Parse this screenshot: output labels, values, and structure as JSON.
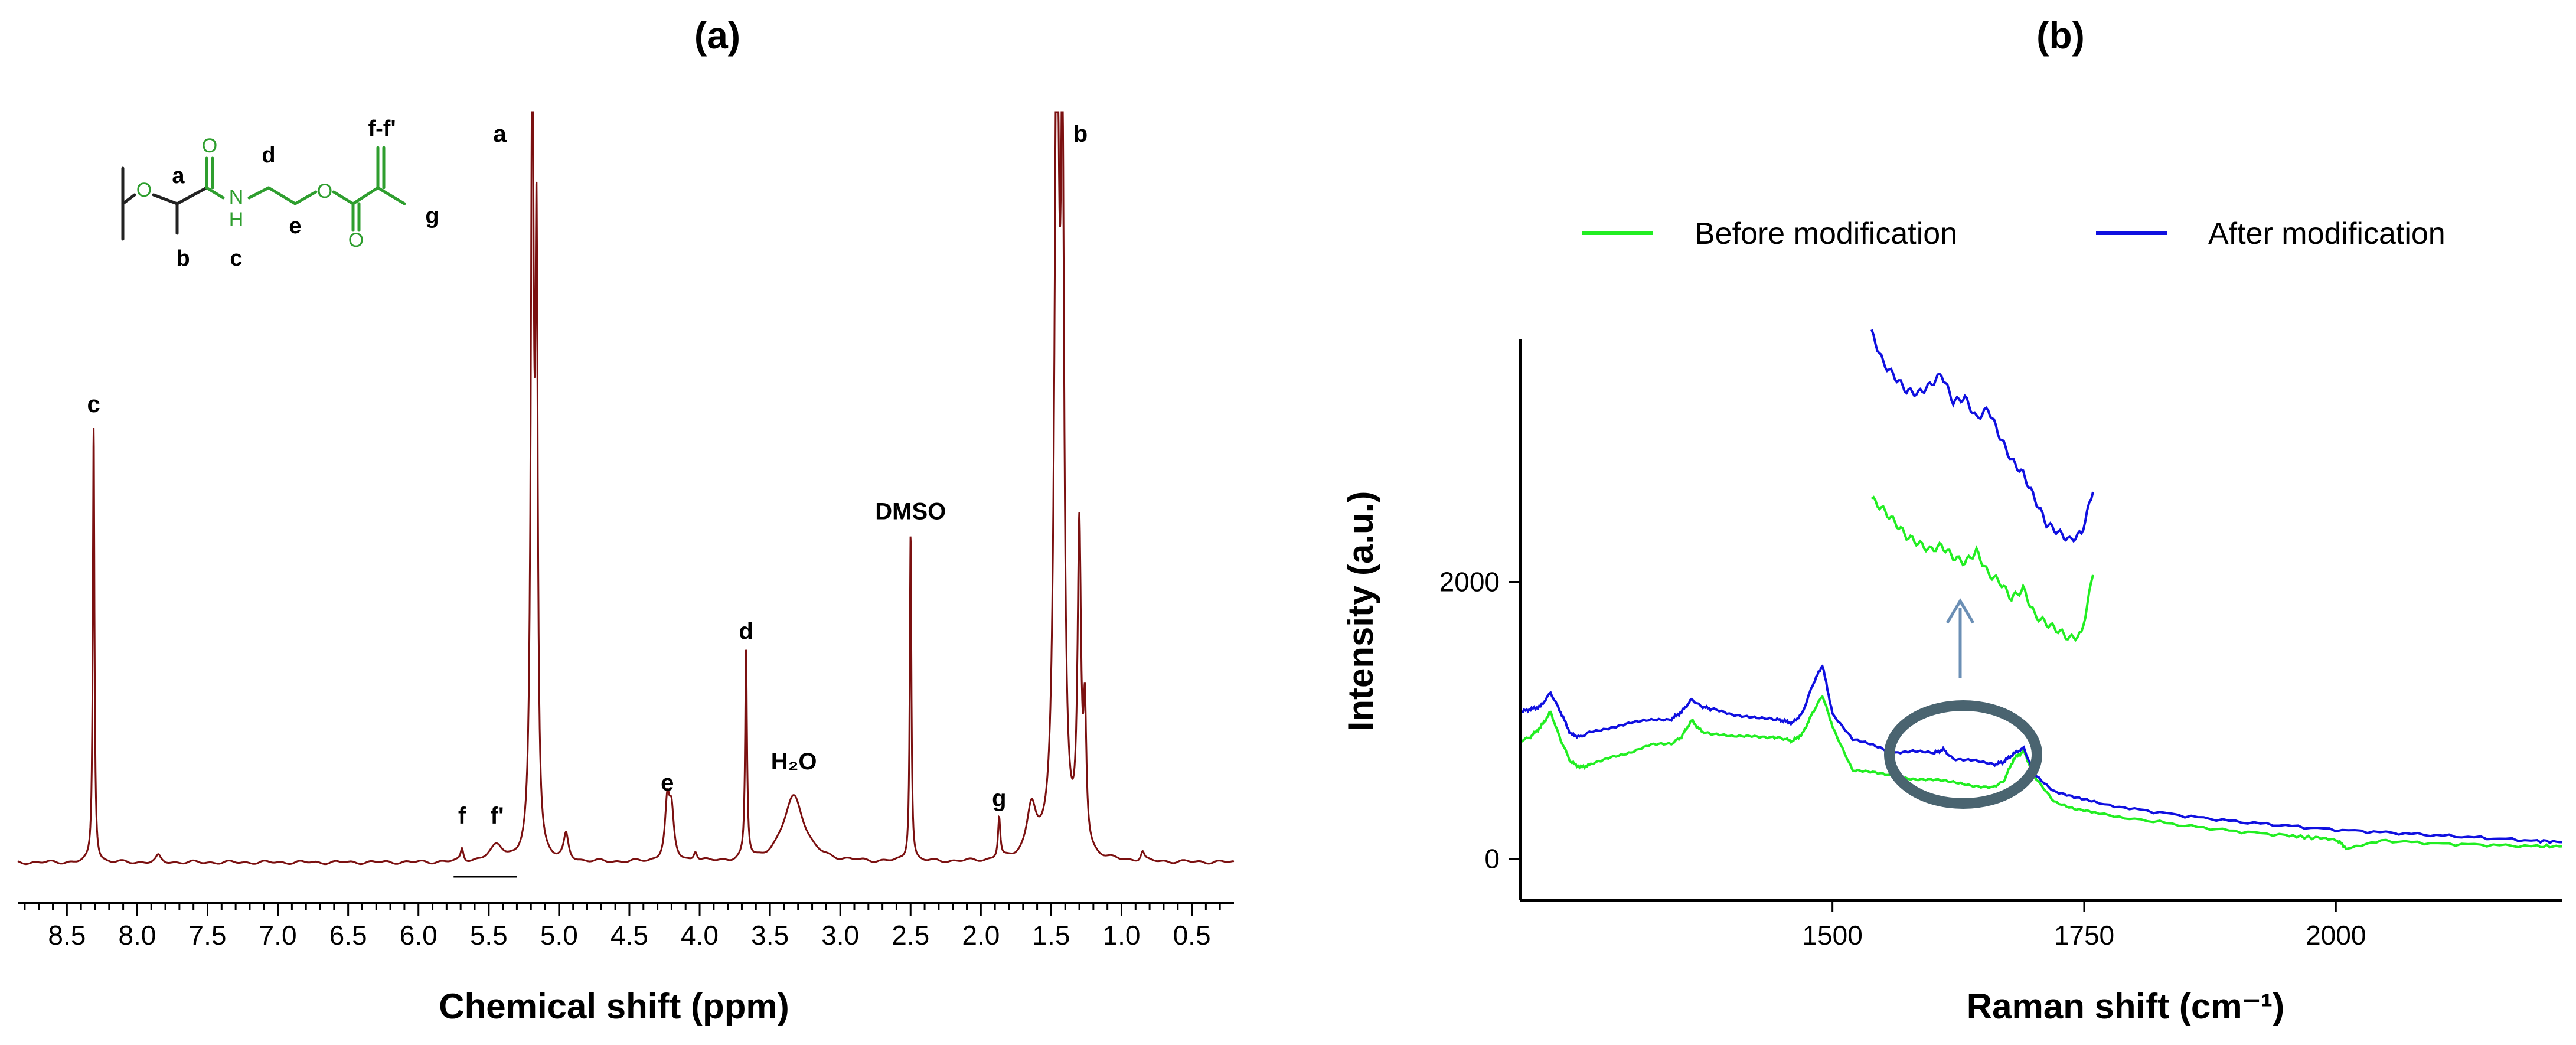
{
  "colors": {
    "nmr_trace": "#7b1010",
    "before": "#22ee22",
    "after": "#1010e0",
    "annotation": "#4a6470",
    "structure_dark": "#222222",
    "structure_green": "#2e9e2e"
  },
  "icons": [
    "chemical-structure-icon",
    "circle-highlight-icon",
    "arrow-up-icon"
  ],
  "chart_data": [
    {
      "panel": "(a)",
      "type": "line",
      "title": "",
      "xlabel": "Chemical shift (ppm)",
      "ylabel": "",
      "xlim": [
        8.85,
        0.2
      ],
      "x_reversed": true,
      "ylim": [
        0,
        1.0
      ],
      "x_ticks": [
        "8.5",
        "8.0",
        "7.5",
        "7.0",
        "6.5",
        "6.0",
        "5.5",
        "5.0",
        "4.5",
        "4.0",
        "3.5",
        "3.0",
        "2.5",
        "2.0",
        "1.5",
        "1.0",
        "0.5"
      ],
      "peaks": [
        {
          "label": "c",
          "ppm": 8.31,
          "height": 0.69,
          "width": 0.007
        },
        {
          "label": "",
          "ppm": 7.85,
          "height": 0.01,
          "width": 0.02
        },
        {
          "label": "f",
          "ppm": 5.69,
          "height": 0.02,
          "width": 0.012
        },
        {
          "label": "f'",
          "ppm": 5.44,
          "height": 0.025,
          "width": 0.06
        },
        {
          "label": "a",
          "ppm": 5.19,
          "height": 1.3,
          "width": 0.012
        },
        {
          "label": "",
          "ppm": 5.16,
          "height": 0.9,
          "width": 0.01
        },
        {
          "label": "",
          "ppm": 4.95,
          "height": 0.04,
          "width": 0.02
        },
        {
          "label": "e",
          "ppm": 4.23,
          "height": 0.09,
          "width": 0.02
        },
        {
          "label": "",
          "ppm": 4.2,
          "height": 0.07,
          "width": 0.02
        },
        {
          "label": "",
          "ppm": 4.03,
          "height": 0.015,
          "width": 0.015
        },
        {
          "label": "d",
          "ppm": 3.67,
          "height": 0.33,
          "width": 0.008
        },
        {
          "label": "H₂O",
          "ppm": 3.33,
          "height": 0.105,
          "width": 0.09
        },
        {
          "label": "DMSO",
          "ppm": 2.5,
          "height": 0.52,
          "width": 0.007
        },
        {
          "label": "g",
          "ppm": 1.87,
          "height": 0.065,
          "width": 0.01
        },
        {
          "label": "",
          "ppm": 1.64,
          "height": 0.08,
          "width": 0.04
        },
        {
          "label": "b",
          "ppm": 1.46,
          "height": 1.3,
          "width": 0.02
        },
        {
          "label": "",
          "ppm": 1.42,
          "height": 1.0,
          "width": 0.015
        },
        {
          "label": "",
          "ppm": 1.3,
          "height": 0.5,
          "width": 0.015
        },
        {
          "label": "",
          "ppm": 1.26,
          "height": 0.2,
          "width": 0.012
        },
        {
          "label": "",
          "ppm": 0.85,
          "height": 0.015,
          "width": 0.015
        }
      ],
      "annotations": {
        "integration_bar": {
          "from_ppm": 5.75,
          "to_ppm": 5.3
        }
      },
      "structure_labels": {
        "a": "a",
        "b": "b",
        "c": "c",
        "d": "d",
        "e": "e",
        "g": "g",
        "ff": "f-f'",
        "O": "O",
        "NH": "N",
        "H": "H"
      }
    },
    {
      "panel": "(b)",
      "type": "line",
      "title": "",
      "xlabel": "Raman shift (cm⁻¹)",
      "ylabel": "Intensity (a.u.)",
      "xlim": [
        1190,
        2225
      ],
      "ylim": [
        -300,
        3750
      ],
      "x_ticks": [
        1500,
        1750,
        2000
      ],
      "y_ticks": [
        0,
        2000
      ],
      "legend_position": "top",
      "series": [
        {
          "name": "Before modification",
          "color_key": "before",
          "x": [
            1190,
            1200,
            1210,
            1220,
            1230,
            1240,
            1250,
            1260,
            1280,
            1300,
            1320,
            1340,
            1350,
            1360,
            1370,
            1380,
            1400,
            1420,
            1440,
            1450,
            1460,
            1470,
            1480,
            1490,
            1500,
            1520,
            1540,
            1560,
            1580,
            1600,
            1620,
            1640,
            1660,
            1670,
            1680,
            1690,
            1700,
            1720,
            1740,
            1760,
            1800,
            1850,
            1900,
            1950,
            1980,
            2000,
            2010,
            2050,
            2100,
            2150,
            2200,
            2225
          ],
          "y": [
            850,
            880,
            950,
            1060,
            860,
            700,
            660,
            680,
            740,
            770,
            820,
            830,
            880,
            1000,
            920,
            900,
            880,
            890,
            880,
            870,
            850,
            900,
            1050,
            1180,
            960,
            640,
            620,
            600,
            580,
            570,
            550,
            530,
            520,
            560,
            720,
            780,
            600,
            420,
            360,
            330,
            290,
            240,
            200,
            170,
            150,
            140,
            80,
            130,
            110,
            100,
            90,
            90
          ]
        },
        {
          "name": "After modification",
          "color_key": "after",
          "x": [
            1190,
            1200,
            1210,
            1220,
            1230,
            1240,
            1250,
            1260,
            1280,
            1300,
            1320,
            1340,
            1350,
            1360,
            1370,
            1380,
            1400,
            1420,
            1440,
            1450,
            1460,
            1470,
            1480,
            1490,
            1500,
            1520,
            1540,
            1560,
            1580,
            1600,
            1610,
            1620,
            1640,
            1660,
            1670,
            1680,
            1690,
            1700,
            1720,
            1740,
            1760,
            1800,
            1850,
            1900,
            1950,
            2000,
            2050,
            2100,
            2150,
            2200,
            2225
          ],
          "y": [
            1060,
            1080,
            1100,
            1200,
            1060,
            900,
            880,
            920,
            950,
            980,
            1000,
            1010,
            1060,
            1150,
            1100,
            1080,
            1040,
            1030,
            1010,
            1000,
            980,
            1050,
            1250,
            1400,
            1050,
            860,
            820,
            770,
            780,
            760,
            790,
            720,
            720,
            680,
            700,
            760,
            800,
            620,
            490,
            440,
            410,
            360,
            310,
            270,
            240,
            210,
            190,
            170,
            150,
            130,
            120
          ]
        }
      ],
      "inset_zoom": {
        "before_trace": [
          2600,
          2520,
          2430,
          2330,
          2280,
          2230,
          2260,
          2180,
          2140,
          2220,
          2060,
          2000,
          1880,
          1950,
          1760,
          1700,
          1650,
          1590,
          1620,
          2050
        ],
        "after_trace": [
          3800,
          3580,
          3480,
          3380,
          3360,
          3420,
          3500,
          3300,
          3330,
          3180,
          3250,
          3050,
          2880,
          2780,
          2600,
          2420,
          2360,
          2300,
          2350,
          2650
        ]
      }
    }
  ]
}
